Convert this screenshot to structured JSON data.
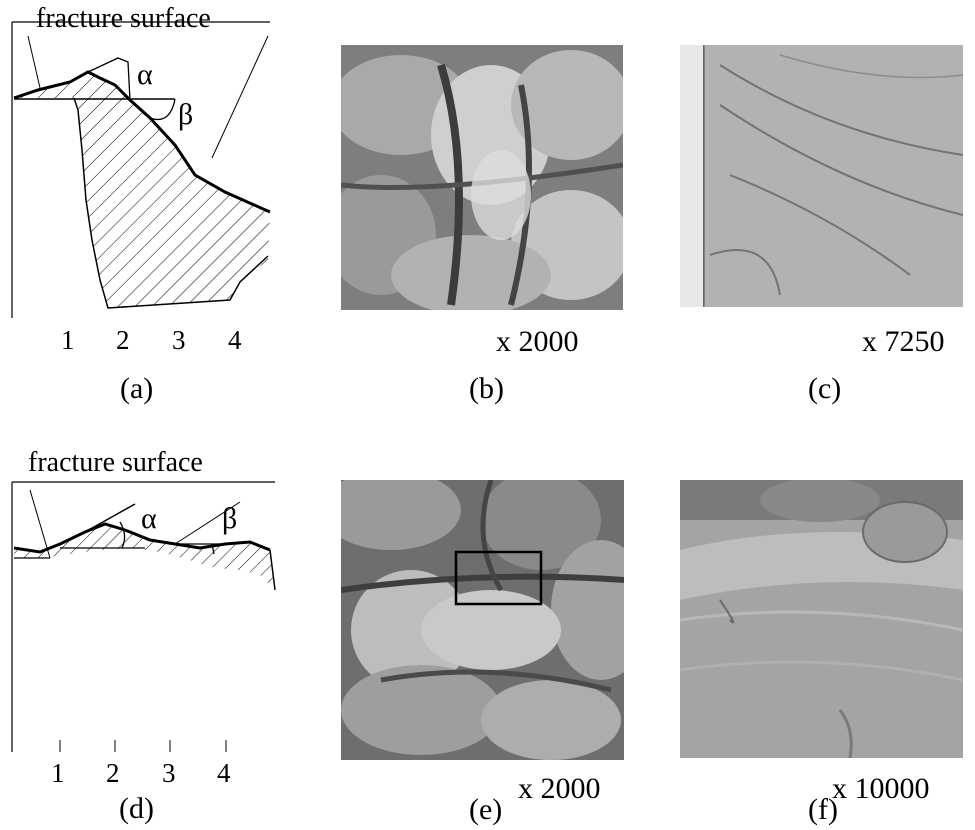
{
  "figure": {
    "panels": {
      "a": {
        "label": "(a)",
        "annotation": "fracture surface",
        "angle_alpha": "α",
        "angle_beta": "β",
        "ticks": [
          "1",
          "2",
          "3",
          "4"
        ]
      },
      "b": {
        "label": "(b)",
        "magnification": "x 2000"
      },
      "c": {
        "label": "(c)",
        "magnification": "x 7250"
      },
      "d": {
        "label": "(d)",
        "annotation": "fracture surface",
        "angle_alpha": "α",
        "angle_beta": "β",
        "ticks": [
          "1",
          "2",
          "3",
          "4"
        ]
      },
      "e": {
        "label": "(e)",
        "magnification": "x 2000"
      },
      "f": {
        "label": "(f)",
        "magnification": "x 10000"
      }
    }
  }
}
